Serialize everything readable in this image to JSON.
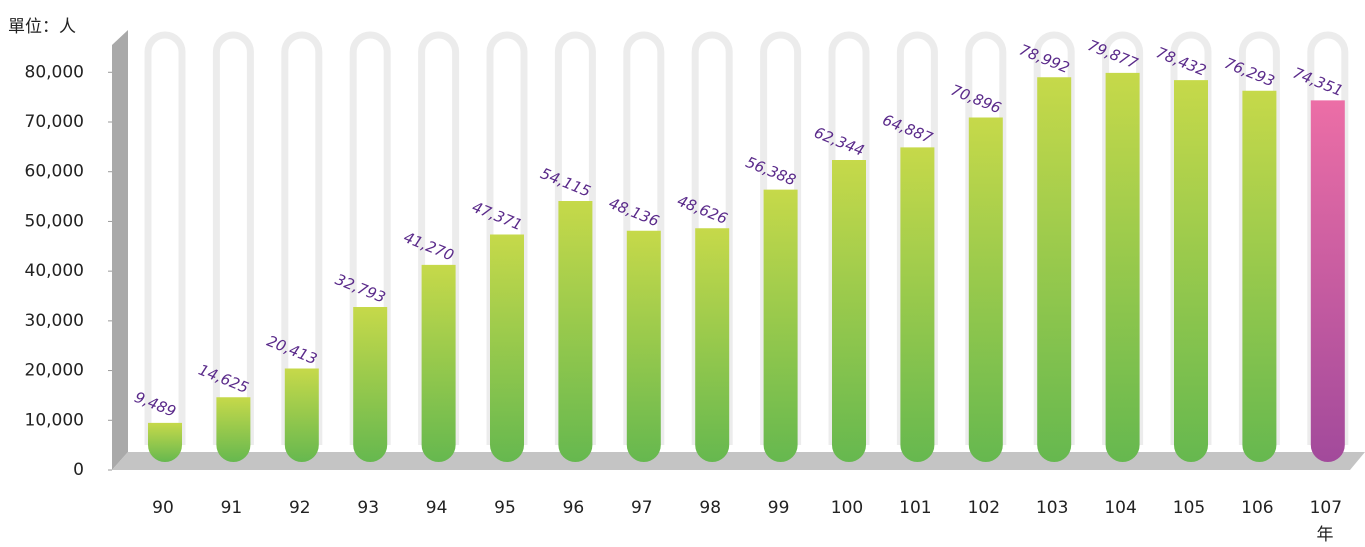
{
  "chart_data": {
    "type": "bar",
    "y_unit_label": "單位：人",
    "x_unit_label": "年",
    "categories": [
      "90",
      "91",
      "92",
      "93",
      "94",
      "95",
      "96",
      "97",
      "98",
      "99",
      "100",
      "101",
      "102",
      "103",
      "104",
      "105",
      "106",
      "107"
    ],
    "values": [
      9489,
      14625,
      20413,
      32793,
      41270,
      47371,
      54115,
      48136,
      48626,
      56388,
      62344,
      64887,
      70896,
      78992,
      79877,
      78432,
      76293,
      74351
    ],
    "value_labels": [
      "9,489",
      "14,625",
      "20,413",
      "32,793",
      "41,270",
      "47,371",
      "54,115",
      "48,136",
      "48,626",
      "56,388",
      "62,344",
      "64,887",
      "70,896",
      "78,992",
      "79,877",
      "78,432",
      "76,293",
      "74,351"
    ],
    "colors": [
      "green",
      "green",
      "green",
      "green",
      "green",
      "green",
      "green",
      "green",
      "green",
      "green",
      "green",
      "green",
      "green",
      "green",
      "green",
      "green",
      "green",
      "pink"
    ],
    "ylim": [
      0,
      87500
    ],
    "yticks": [
      0,
      {
        "value": 10000,
        "label": "10,000"
      },
      {
        "value": 20000,
        "label": "20,000"
      },
      {
        "value": 30000,
        "label": "30,000"
      },
      {
        "value": 40000,
        "label": "40,000"
      },
      {
        "value": 50000,
        "label": "50,000"
      },
      {
        "value": 60000,
        "label": "60,000"
      },
      {
        "value": 70000,
        "label": "70,000"
      },
      {
        "value": 80000,
        "label": "80,000"
      }
    ]
  }
}
